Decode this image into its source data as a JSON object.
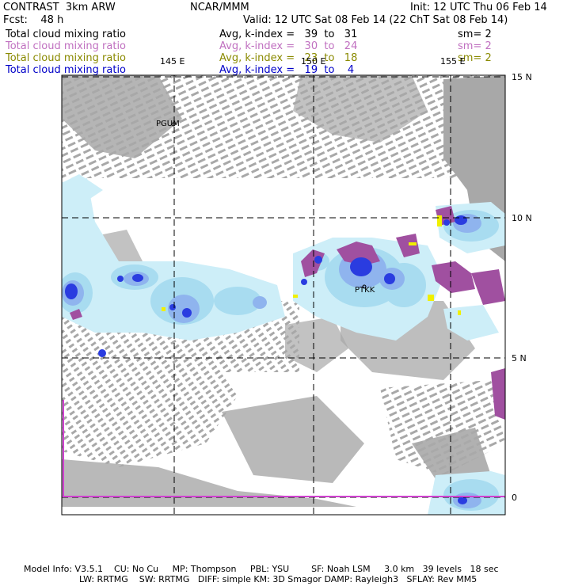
{
  "header": {
    "model": "CONTRAST  3km ARW",
    "org": "NCAR/MMM",
    "init": "Init: 12 UTC Thu 06 Feb 14",
    "fcst": "Fcst:    48 h",
    "valid": "Valid: 12 UTC Sat 08 Feb 14 (22 ChT Sat 08 Feb 14)"
  },
  "fields": [
    {
      "name": "Total cloud mixing ratio",
      "range": "Avg, k-index =   39  to   31",
      "sm": "sm= 2",
      "color": "#000000"
    },
    {
      "name": "Total cloud mixing ratio",
      "range": "Avg, k-index =   30  to   24",
      "sm": "sm= 2",
      "color": "#c070c0"
    },
    {
      "name": "Total cloud mixing ratio",
      "range": "Avg, k-index =   23  to   18",
      "sm": "sm= 2",
      "color": "#8a8a00"
    },
    {
      "name": "Total cloud mixing ratio",
      "range": "Avg, k-index =   19  to    4",
      "sm": "",
      "color": "#0000c8"
    }
  ],
  "map": {
    "lon_labels": [
      "145 E",
      "150 E",
      "155 E"
    ],
    "lat_labels": [
      "15 N",
      "10 N",
      "5 N",
      "0"
    ],
    "stations": [
      "PGUM",
      "PTKK"
    ],
    "colors": {
      "gray": "#a8a8a8",
      "light_cyan": "#cdeef8",
      "cyan": "#a8dcf0",
      "light_blue": "#8fb4ee",
      "blue": "#2a3ce0",
      "purple": "#a050a0",
      "yellow": "#f0f000",
      "magenta": "#d040d0"
    }
  },
  "footer": {
    "line1": "Model Info: V3.5.1    CU: No Cu     MP: Thompson     PBL: YSU        SF: Noah LSM     3.0 km   39 levels   18 sec",
    "line2": "LW: RRTMG    SW: RRTMG   DIFF: simple KM: 3D Smagor DAMP: Rayleigh3   SFLAY: Rev MM5"
  }
}
